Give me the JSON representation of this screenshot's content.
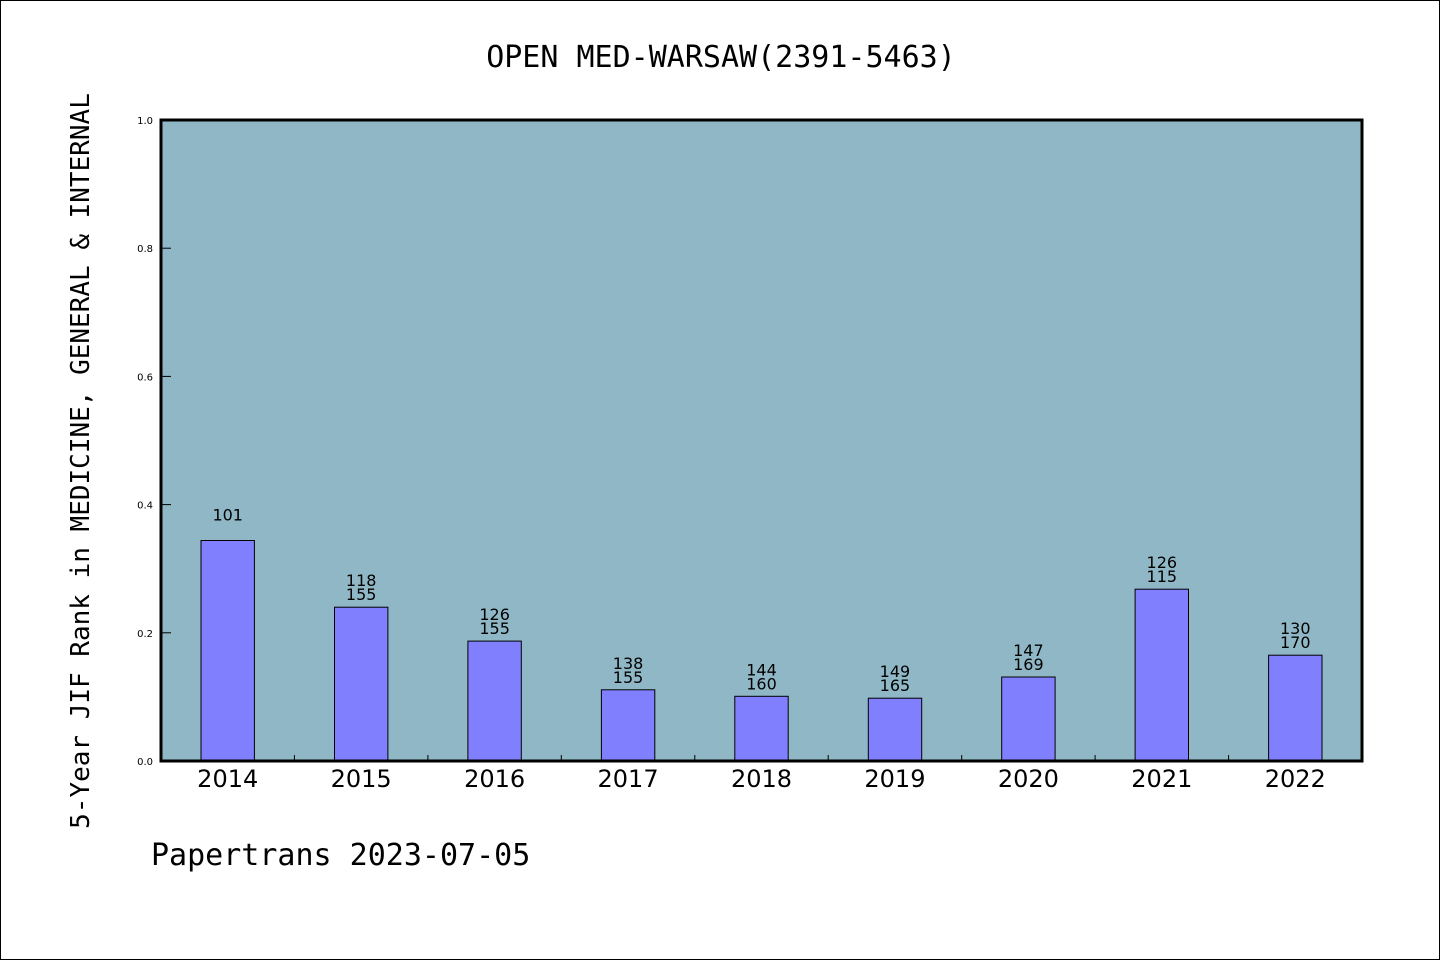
{
  "chart_data": {
    "type": "bar",
    "title": "OPEN MED-WARSAW(2391-5463)",
    "ylabel": "5-Year JIF Rank in MEDICINE, GENERAL & INTERNAL",
    "footer": "Papertrans 2023-07-05",
    "categories": [
      "2014",
      "2015",
      "2016",
      "2017",
      "2018",
      "2019",
      "2020",
      "2021",
      "2022"
    ],
    "values": [
      0.344,
      0.24,
      0.187,
      0.111,
      0.101,
      0.098,
      0.131,
      0.268,
      0.165
    ],
    "labels_top": [
      "101",
      "118",
      "126",
      "138",
      "144",
      "149",
      "147",
      "126",
      "130"
    ],
    "labels_bottom": [
      "",
      "155",
      "155",
      "155",
      "160",
      "165",
      "169",
      "115",
      "170"
    ],
    "ylim": [
      0.0,
      1.0
    ],
    "yticks": [
      "0.0",
      "0.2",
      "0.4",
      "0.6",
      "0.8",
      "1.0"
    ],
    "grid": false,
    "colors": {
      "plot_background": "#8fb7c5",
      "bar_fill": "#8080ff",
      "bar_edge": "#000000",
      "axis": "#000000"
    }
  }
}
